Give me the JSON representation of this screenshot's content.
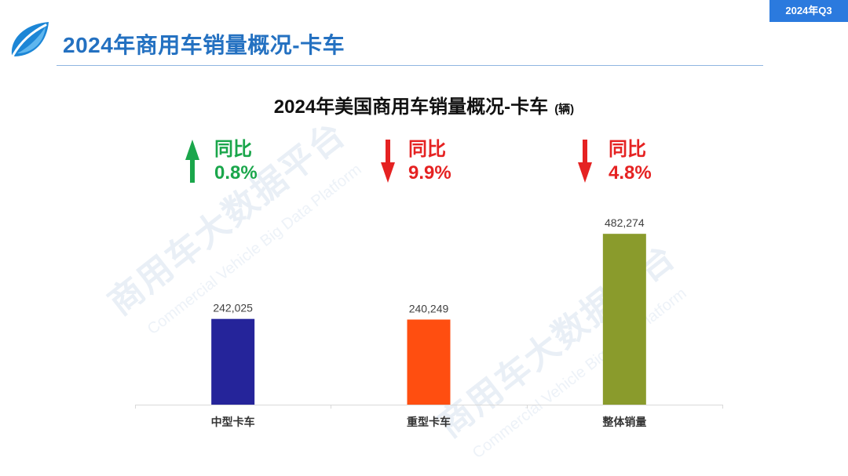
{
  "badge": {
    "label": "2024年Q3"
  },
  "header": {
    "title": "2024年商用车销量概况-卡车",
    "logo_icon": "app-logo-icon"
  },
  "watermark": {
    "text": "商用车大数据平台",
    "subtext": "Commercial Vehicle Big Data Platform"
  },
  "colors": {
    "brand_blue": "#2471c1",
    "badge_blue": "#2b7ade",
    "rule_blue": "#8fb5e0",
    "increase_green": "#1aa64b",
    "decrease_red": "#e52222"
  },
  "chart_data": {
    "type": "bar",
    "title": "2024年美国商用车销量概况-卡车",
    "unit": "(辆)",
    "categories": [
      "中型卡车",
      "重型卡车",
      "整体销量"
    ],
    "values": [
      242025,
      240249,
      482274
    ],
    "value_labels": [
      "242,025",
      "240,249",
      "482,274"
    ],
    "bar_colors": [
      "#25249a",
      "#ff4e10",
      "#8a9b2c"
    ],
    "grid": false,
    "annotations": [
      {
        "label": "同比",
        "value": "0.8%",
        "icon": "arrow-up-icon",
        "color": "#1aa64b"
      },
      {
        "label": "同比",
        "value": "9.9%",
        "icon": "arrow-down-icon",
        "color": "#e52222"
      },
      {
        "label": "同比",
        "value": "4.8%",
        "icon": "arrow-down-icon",
        "color": "#e52222"
      }
    ]
  }
}
